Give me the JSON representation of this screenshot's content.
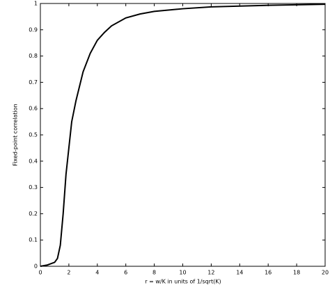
{
  "chart_data": {
    "type": "line",
    "xlabel": "r = w/K in units of 1/sqrt(K)",
    "ylabel": "Fixed-point correlation",
    "x": [
      0,
      0.5,
      1,
      1.2,
      1.4,
      1.6,
      1.8,
      2,
      2.2,
      2.5,
      3,
      3.5,
      4,
      4.5,
      5,
      6,
      7,
      8,
      10,
      12,
      14,
      16,
      18,
      20
    ],
    "series": [
      {
        "color": "#000000",
        "values": [
          0,
          0.005,
          0.015,
          0.03,
          0.08,
          0.2,
          0.35,
          0.45,
          0.55,
          0.63,
          0.74,
          0.81,
          0.86,
          0.89,
          0.915,
          0.945,
          0.96,
          0.97,
          0.98,
          0.987,
          0.99,
          0.993,
          0.995,
          0.997
        ]
      }
    ],
    "xlim": [
      0,
      20
    ],
    "xticks": [
      0,
      2,
      4,
      6,
      8,
      10,
      12,
      14,
      16,
      18,
      20
    ],
    "ylim": [
      0,
      1
    ],
    "yticks": [
      0,
      0.1,
      0.2,
      0.3,
      0.4,
      0.5,
      0.6,
      0.7,
      0.8,
      0.9,
      1
    ],
    "grid": false
  }
}
